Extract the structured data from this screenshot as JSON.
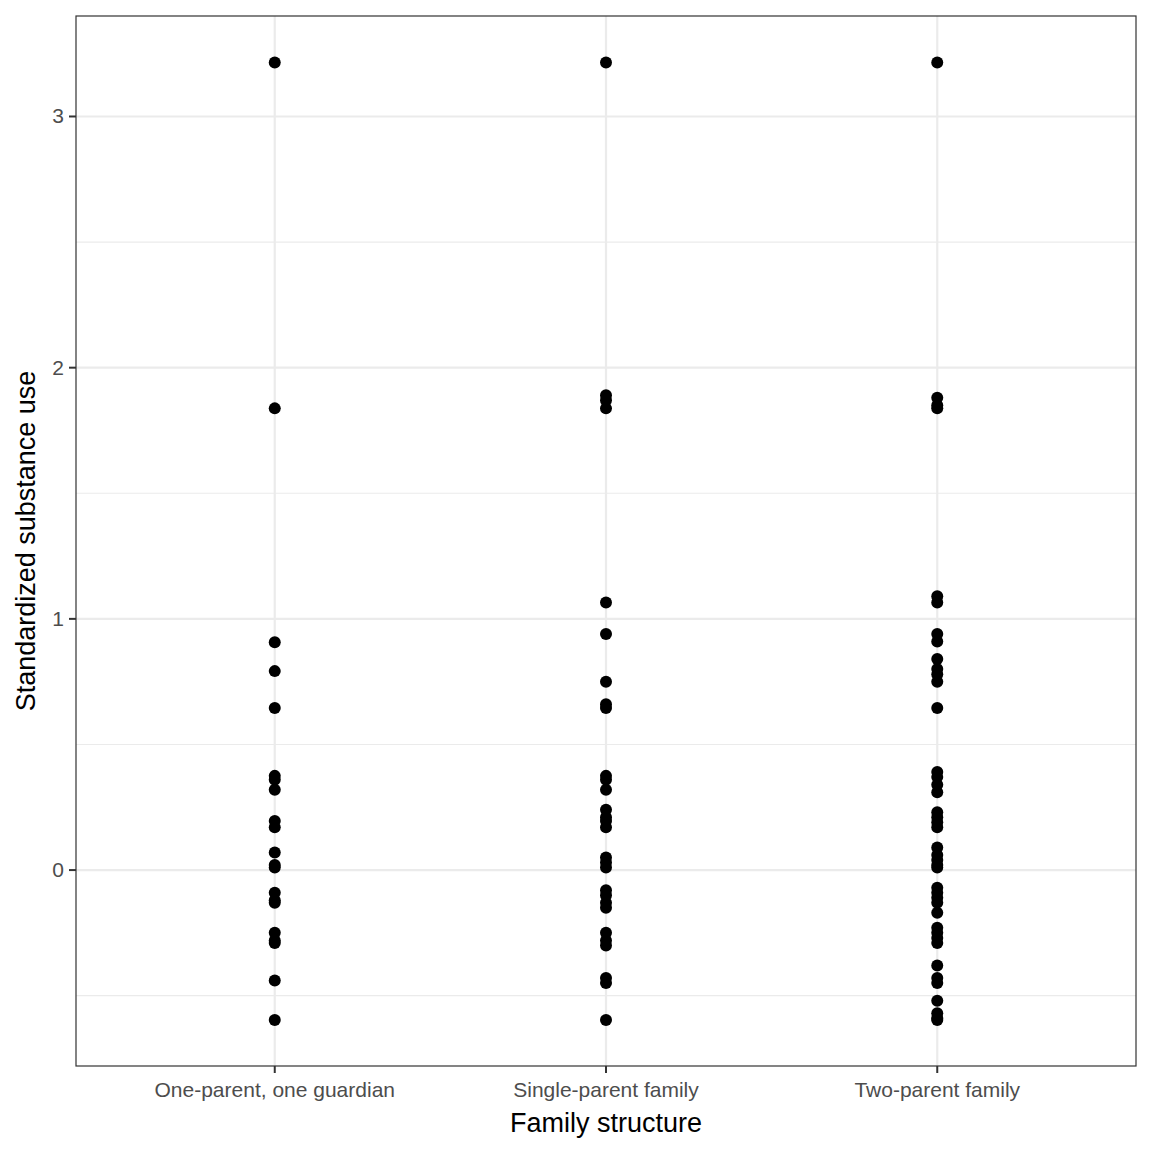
{
  "chart_data": {
    "type": "scatter",
    "x_label": "Family structure",
    "y_label": "Standardized substance use",
    "categories": [
      "One-parent, one guardian",
      "Single-parent family",
      "Two-parent family"
    ],
    "values": [
      [
        3.215,
        1.838,
        0.907,
        0.792,
        0.645,
        0.375,
        0.36,
        0.32,
        0.195,
        0.17,
        0.07,
        0.02,
        0.01,
        -0.09,
        -0.12,
        -0.13,
        -0.25,
        -0.28,
        -0.29,
        -0.44,
        -0.597
      ],
      [
        3.215,
        1.89,
        1.87,
        1.838,
        1.065,
        0.94,
        0.75,
        0.66,
        0.645,
        0.375,
        0.36,
        0.32,
        0.24,
        0.21,
        0.195,
        0.17,
        0.05,
        0.03,
        0.01,
        -0.08,
        -0.1,
        -0.13,
        -0.15,
        -0.25,
        -0.28,
        -0.3,
        -0.43,
        -0.45,
        -0.597
      ],
      [
        3.215,
        1.88,
        1.85,
        1.838,
        1.09,
        1.065,
        0.94,
        0.91,
        0.84,
        0.8,
        0.78,
        0.75,
        0.645,
        0.39,
        0.37,
        0.34,
        0.31,
        0.23,
        0.21,
        0.19,
        0.17,
        0.09,
        0.06,
        0.04,
        0.02,
        0.01,
        -0.07,
        -0.09,
        -0.11,
        -0.13,
        -0.17,
        -0.23,
        -0.25,
        -0.27,
        -0.29,
        -0.38,
        -0.43,
        -0.45,
        -0.52,
        -0.57,
        -0.59,
        -0.597
      ]
    ],
    "color": "#000000",
    "ylim": [
      -0.78,
      3.4
    ],
    "yticks": [
      0,
      1,
      2,
      3
    ],
    "grid": true
  }
}
